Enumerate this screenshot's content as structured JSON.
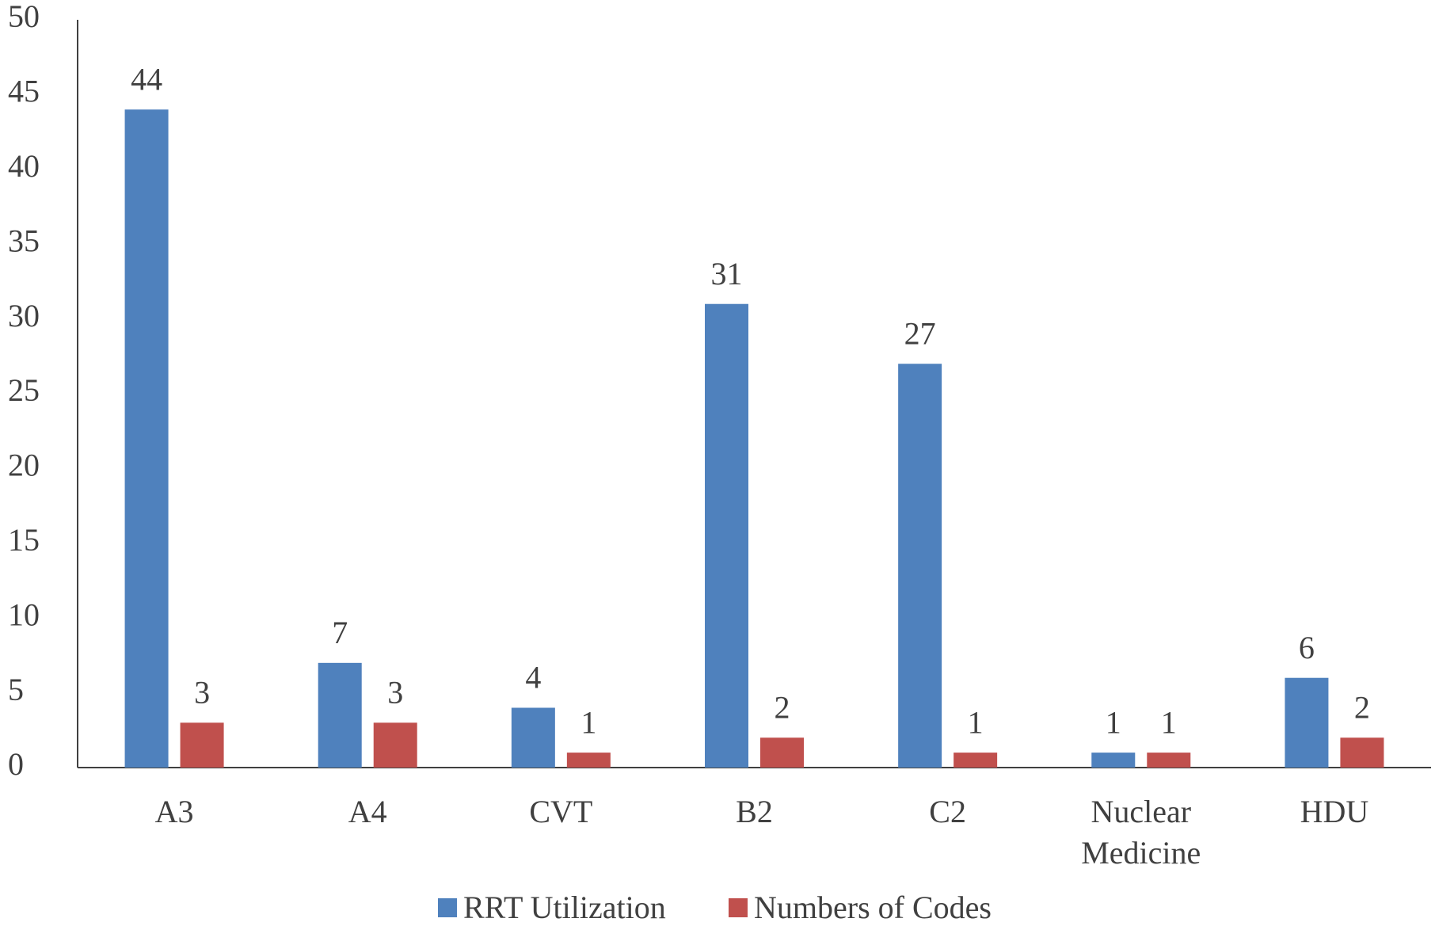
{
  "chart_data": {
    "type": "bar",
    "categories": [
      "A3",
      "A4",
      "CVT",
      "B2",
      "C2",
      "Nuclear Medicine",
      "HDU"
    ],
    "series": [
      {
        "name": "RRT Utilization",
        "color": "#4f81bd",
        "values": [
          44,
          7,
          4,
          31,
          27,
          1,
          6
        ]
      },
      {
        "name": "Numbers of Codes",
        "color": "#c0504d",
        "values": [
          3,
          3,
          1,
          2,
          1,
          1,
          2
        ]
      }
    ],
    "ylim": [
      0,
      50
    ],
    "yticks": [
      0,
      5,
      10,
      15,
      20,
      25,
      30,
      35,
      40,
      45,
      50
    ],
    "grid": false,
    "legend": "bottom",
    "data_labels": true
  }
}
